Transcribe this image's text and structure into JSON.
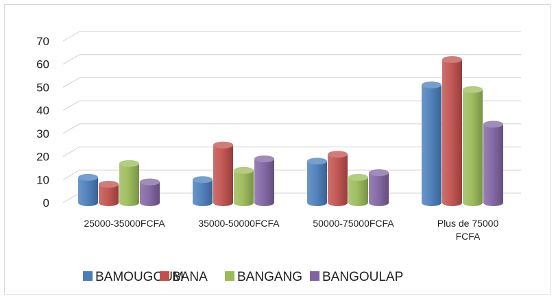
{
  "chart_data": {
    "type": "bar",
    "categories": [
      "25000-35000FCFA",
      "35000-50000FCFA",
      "50000-75000FCFA",
      "Plus de 75000 FCFA"
    ],
    "category_lines": [
      [
        "25000-35000FCFA"
      ],
      [
        "35000-50000FCFA"
      ],
      [
        "50000-75000FCFA"
      ],
      [
        "Plus de 75000",
        "FCFA"
      ]
    ],
    "series": [
      {
        "name": "BAMOUGOUM",
        "values": [
          11,
          10,
          18,
          51
        ],
        "color": "#4a7ebb"
      },
      {
        "name": "BANA",
        "values": [
          8,
          25,
          21,
          62
        ],
        "color": "#c0504d"
      },
      {
        "name": "BANGANG",
        "values": [
          17,
          14,
          11,
          49
        ],
        "color": "#9bbb59"
      },
      {
        "name": "BANGOULAP",
        "values": [
          9,
          19,
          13,
          34
        ],
        "color": "#8064a2"
      }
    ],
    "title": "",
    "xlabel": "",
    "ylabel": "",
    "ylim": [
      0,
      70
    ],
    "yticks": [
      "0",
      "10",
      "20",
      "30",
      "40",
      "50",
      "60",
      "70"
    ],
    "grid": true,
    "legend": "bottom"
  }
}
